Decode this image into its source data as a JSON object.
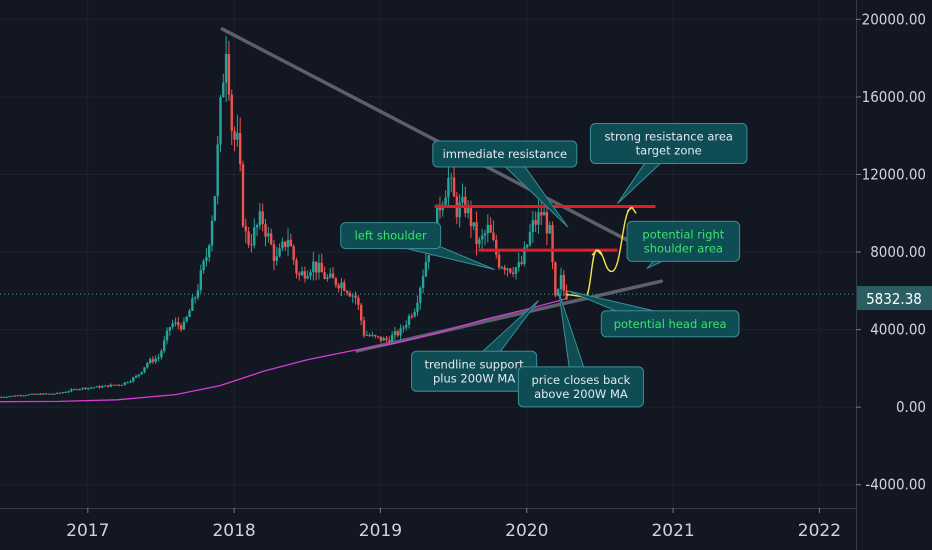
{
  "chart_data": {
    "type": "candlestick",
    "title": "",
    "xlabel": "",
    "ylabel": "",
    "ylim": [
      -5200,
      21000
    ],
    "xlim": [
      2016.4,
      2022.25
    ],
    "grid": true,
    "y_ticks": [
      "20000.00",
      "16000.00",
      "12000.00",
      "8000.00",
      "4000.00",
      "0.00",
      "-4000.00"
    ],
    "y_tick_values": [
      20000,
      16000,
      12000,
      8000,
      4000,
      0,
      -4000
    ],
    "x_ticks": [
      "2017",
      "2018",
      "2019",
      "2020",
      "2021",
      "2022"
    ],
    "x_tick_values": [
      2017,
      2018,
      2019,
      2020,
      2021,
      2022
    ],
    "current_price": {
      "label": "5832.38",
      "value": 5832.38
    },
    "price_path": [
      [
        2016.4,
        520
      ],
      [
        2016.6,
        650
      ],
      [
        2016.8,
        700
      ],
      [
        2016.95,
        960
      ],
      [
        2017.1,
        1050
      ],
      [
        2017.25,
        1200
      ],
      [
        2017.35,
        1600
      ],
      [
        2017.42,
        2300
      ],
      [
        2017.5,
        2600
      ],
      [
        2017.58,
        4300
      ],
      [
        2017.67,
        4200
      ],
      [
        2017.75,
        5800
      ],
      [
        2017.83,
        8000
      ],
      [
        2017.88,
        11000
      ],
      [
        2017.93,
        16500
      ],
      [
        2017.96,
        19200
      ],
      [
        2018.0,
        14000
      ],
      [
        2018.04,
        13500
      ],
      [
        2018.08,
        9000
      ],
      [
        2018.12,
        8500
      ],
      [
        2018.2,
        9800
      ],
      [
        2018.3,
        7500
      ],
      [
        2018.38,
        8800
      ],
      [
        2018.45,
        6700
      ],
      [
        2018.55,
        7400
      ],
      [
        2018.65,
        6600
      ],
      [
        2018.75,
        6400
      ],
      [
        2018.85,
        5600
      ],
      [
        2018.9,
        3800
      ],
      [
        2018.96,
        3600
      ],
      [
        2019.05,
        3450
      ],
      [
        2019.15,
        3900
      ],
      [
        2019.25,
        5200
      ],
      [
        2019.33,
        7800
      ],
      [
        2019.42,
        10500
      ],
      [
        2019.48,
        11800
      ],
      [
        2019.53,
        10200
      ],
      [
        2019.6,
        10400
      ],
      [
        2019.68,
        8300
      ],
      [
        2019.75,
        9200
      ],
      [
        2019.82,
        7500
      ],
      [
        2019.9,
        7200
      ],
      [
        2019.97,
        7200
      ],
      [
        2020.05,
        9300
      ],
      [
        2020.12,
        10100
      ],
      [
        2020.17,
        8900
      ],
      [
        2020.21,
        5300
      ],
      [
        2020.25,
        6700
      ],
      [
        2020.27,
        5832
      ]
    ],
    "series": [
      {
        "name": "",
        "color": "#d63bd3",
        "values": [
          [
            2016.4,
            280
          ],
          [
            2016.8,
            300
          ],
          [
            2017.2,
            380
          ],
          [
            2017.6,
            650
          ],
          [
            2017.9,
            1100
          ],
          [
            2018.2,
            1850
          ],
          [
            2018.5,
            2450
          ],
          [
            2018.8,
            2900
          ],
          [
            2019.1,
            3300
          ],
          [
            2019.4,
            3850
          ],
          [
            2019.7,
            4500
          ],
          [
            2020.0,
            5050
          ],
          [
            2020.2,
            5450
          ],
          [
            2020.27,
            5600
          ]
        ]
      }
    ],
    "annotations": [
      {
        "id": "immediate-resistance",
        "lines": [
          "immediate resistance"
        ],
        "style": "white",
        "anchor": [
          2019.85,
          13060
        ],
        "pointer": [
          2020.28,
          9300
        ]
      },
      {
        "id": "strong-resistance",
        "lines": [
          "strong resistance area",
          "target zone"
        ],
        "style": "white",
        "anchor": [
          2020.97,
          13600
        ],
        "pointer": [
          2020.62,
          10500
        ]
      },
      {
        "id": "left-shoulder",
        "lines": [
          "left shoulder"
        ],
        "style": "green",
        "anchor": [
          2019.07,
          8850
        ],
        "pointer": [
          2019.78,
          7100
        ]
      },
      {
        "id": "right-shoulder",
        "lines": [
          "potential right",
          "shoulder area"
        ],
        "style": "green",
        "anchor": [
          2021.07,
          8550
        ],
        "pointer": [
          2020.82,
          7150
        ]
      },
      {
        "id": "head-area",
        "lines": [
          "potential head area"
        ],
        "style": "green",
        "anchor": [
          2020.98,
          4300
        ],
        "pointer": [
          2020.28,
          6000
        ]
      },
      {
        "id": "trendline-support",
        "lines": [
          "trendline support",
          "plus 200W MA"
        ],
        "style": "white",
        "anchor": [
          2019.64,
          1850
        ],
        "pointer": [
          2020.08,
          5500
        ]
      },
      {
        "id": "price-closes",
        "lines": [
          "price closes back",
          "above 200W MA"
        ],
        "style": "white",
        "anchor": [
          2020.37,
          1050
        ],
        "pointer": [
          2020.22,
          5900
        ]
      }
    ],
    "resistance_lines": [
      {
        "from": [
          2019.37,
          10350
        ],
        "to": [
          2020.88,
          10350
        ],
        "color": "#e01e2a"
      },
      {
        "from": [
          2019.67,
          8100
        ],
        "to": [
          2020.62,
          8100
        ],
        "color": "#e01e2a"
      }
    ],
    "trendlines": [
      {
        "from": [
          2017.92,
          19500
        ],
        "to": [
          2020.92,
          7700
        ]
      },
      {
        "from": [
          2018.84,
          2900
        ],
        "to": [
          2020.92,
          6500
        ]
      }
    ],
    "projections": [
      {
        "points": [
          [
            2020.27,
            5800
          ],
          [
            2020.4,
            5700
          ],
          [
            2020.48,
            8100
          ],
          [
            2020.58,
            7000
          ],
          [
            2020.72,
            10300
          ]
        ],
        "color": "#f5e34a"
      }
    ]
  }
}
